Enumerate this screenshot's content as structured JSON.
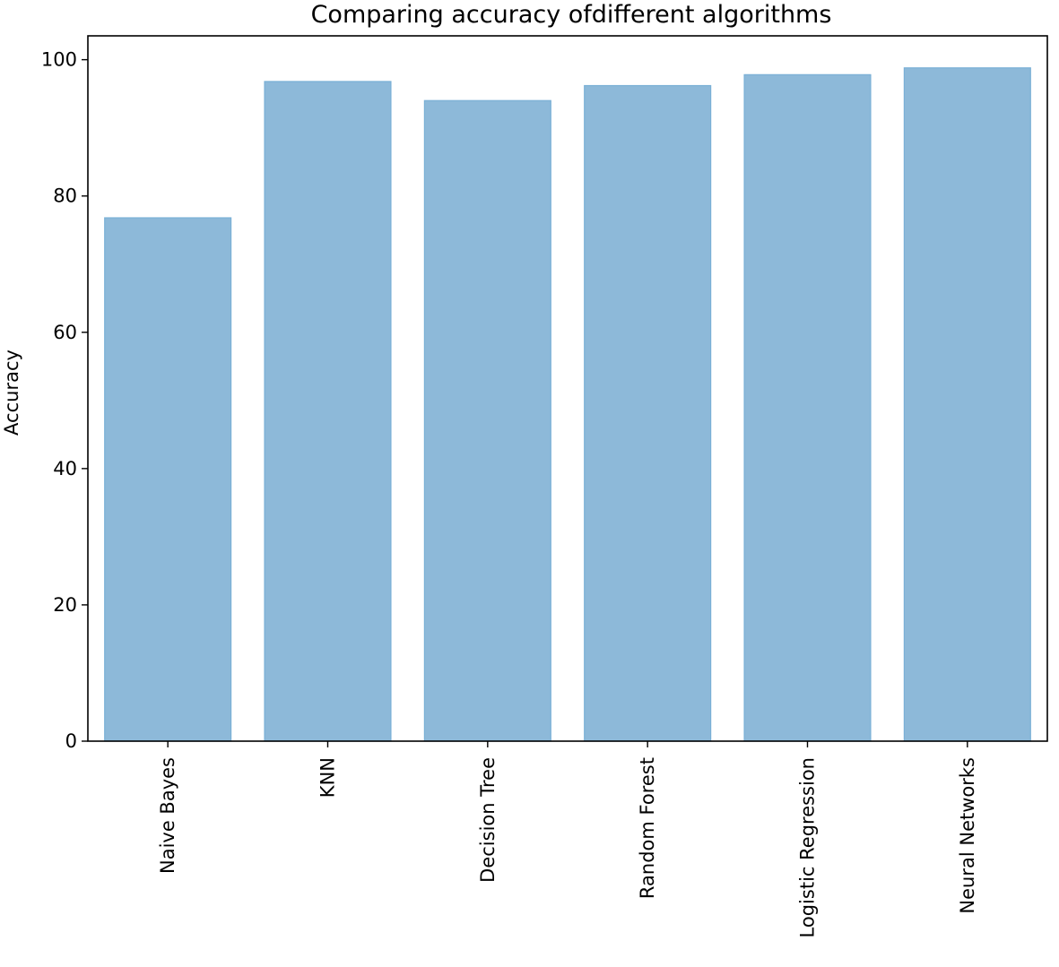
{
  "chart_data": {
    "type": "bar",
    "title": "Comparing accuracy ofdifferent algorithms",
    "xlabel": "",
    "ylabel": "Accuracy",
    "categories": [
      "Naive Bayes",
      "KNN",
      "Decision Tree",
      "Random Forest",
      "Logistic Regression",
      "Neural Networks"
    ],
    "values": [
      76.8,
      96.8,
      94.0,
      96.2,
      97.8,
      98.8
    ],
    "ylim": [
      0,
      103.5
    ],
    "yticks": [
      0,
      20,
      40,
      60,
      80,
      100
    ],
    "grid": false,
    "bar_color": "#8db9d9",
    "bar_edge_color": "#7ab0d6"
  }
}
